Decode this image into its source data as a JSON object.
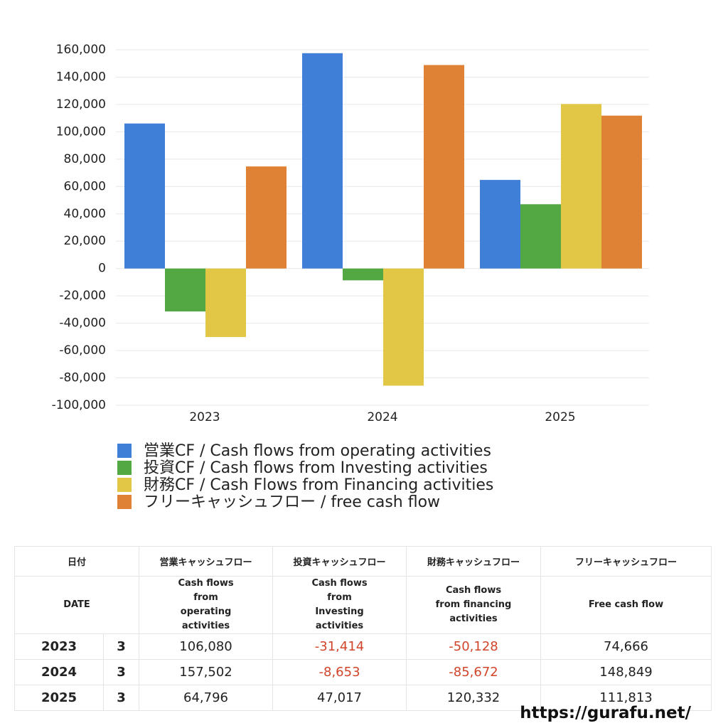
{
  "chart_data": {
    "type": "bar",
    "categories": [
      "2023",
      "2024",
      "2025"
    ],
    "series": [
      {
        "name": "営業CF / Cash flows from operating activities",
        "color": "#3f7fd8",
        "values": [
          106080,
          157502,
          64796
        ]
      },
      {
        "name": "投資CF / Cash flows from Investing activities",
        "color": "#54a844",
        "values": [
          -31414,
          -8653,
          47017
        ]
      },
      {
        "name": "財務CF / Cash Flows from Financing activities",
        "color": "#e2c645",
        "values": [
          -50128,
          -85672,
          120332
        ]
      },
      {
        "name": "フリーキャッシュフロー / free cash flow",
        "color": "#e08236",
        "values": [
          74666,
          148849,
          111813
        ]
      }
    ],
    "ylim": [
      -100000,
      160000
    ],
    "yticks": [
      {
        "value": -100000,
        "label": "-100,000"
      },
      {
        "value": -80000,
        "label": "-80,000"
      },
      {
        "value": -60000,
        "label": "-60,000"
      },
      {
        "value": -40000,
        "label": "-40,000"
      },
      {
        "value": -20000,
        "label": "-20,000"
      },
      0,
      {
        "value": 20000,
        "label": "20,000"
      },
      {
        "value": 40000,
        "label": "40,000"
      },
      {
        "value": 60000,
        "label": "60,000"
      },
      {
        "value": 80000,
        "label": "80,000"
      },
      {
        "value": 100000,
        "label": "100,000"
      },
      {
        "value": 120000,
        "label": "120,000"
      },
      {
        "value": 140000,
        "label": "140,000"
      },
      {
        "value": 160000,
        "label": "160,000"
      }
    ],
    "grid": true
  },
  "table": {
    "header": [
      "日付",
      "営業キャッシュフロー",
      "投資キャッシュフロー",
      "財務キャッシュフロー",
      "フリーキャッシュフロー"
    ],
    "subheader": [
      "DATE",
      "Cash flows from operating activities",
      "Cash flows from Investing activities",
      "Cash flows from financing activities",
      "Free cash flow"
    ],
    "rows": [
      [
        "2023",
        "3",
        "106,080",
        "-31,414",
        "-50,128",
        "74,666"
      ],
      [
        "2024",
        "3",
        "157,502",
        "-8,653",
        "-85,672",
        "148,849"
      ],
      [
        "2025",
        "3",
        "64,796",
        "47,017",
        "120,332",
        "111,813"
      ]
    ]
  },
  "footer": "https://gurafu.net/"
}
